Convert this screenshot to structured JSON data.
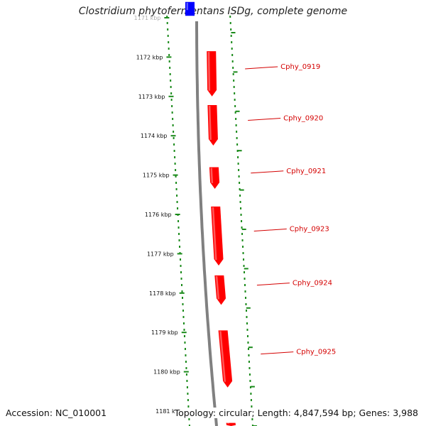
{
  "title": "Clostridium phytofermentans ISDg, complete genome",
  "footer": {
    "accession": "Accession: NC_010001",
    "summary": "Topology: circular; Length: 4,847,594 bp; Genes: 3,988"
  },
  "colors": {
    "forward_gene": "#ff0000",
    "other_gene": "#0000ff",
    "backbone": "#808080",
    "ruler": "#1a8a1a",
    "label": "#d40000"
  },
  "ticks": [
    {
      "label": "1171 kbp",
      "kbp": 1171
    },
    {
      "label": "1172 kbp",
      "kbp": 1172
    },
    {
      "label": "1173 kbp",
      "kbp": 1173
    },
    {
      "label": "1174 kbp",
      "kbp": 1174
    },
    {
      "label": "1175 kbp",
      "kbp": 1175
    },
    {
      "label": "1176 kbp",
      "kbp": 1176
    },
    {
      "label": "1177 kbp",
      "kbp": 1177
    },
    {
      "label": "1178 kbp",
      "kbp": 1178
    },
    {
      "label": "1179 kbp",
      "kbp": 1179
    },
    {
      "label": "1180 kbp",
      "kbp": 1180
    },
    {
      "label": "1181 kbp",
      "kbp": 1181
    }
  ],
  "genes": [
    {
      "label": "",
      "start_kbp": 1170.6,
      "end_kbp": 1170.95,
      "strand": "other"
    },
    {
      "label": "Cphy_0919",
      "start_kbp": 1171.85,
      "end_kbp": 1173.0,
      "strand": "forward"
    },
    {
      "label": "Cphy_0920",
      "start_kbp": 1173.22,
      "end_kbp": 1174.25,
      "strand": "forward"
    },
    {
      "label": "Cphy_0921",
      "start_kbp": 1174.8,
      "end_kbp": 1175.35,
      "strand": "forward"
    },
    {
      "label": "Cphy_0923",
      "start_kbp": 1175.8,
      "end_kbp": 1177.3,
      "strand": "forward"
    },
    {
      "label": "Cphy_0924",
      "start_kbp": 1177.55,
      "end_kbp": 1178.3,
      "strand": "forward"
    },
    {
      "label": "Cphy_0925",
      "start_kbp": 1178.95,
      "end_kbp": 1180.4,
      "strand": "forward"
    },
    {
      "label": "",
      "start_kbp": 1181.3,
      "end_kbp": 1181.6,
      "strand": "forward"
    }
  ]
}
